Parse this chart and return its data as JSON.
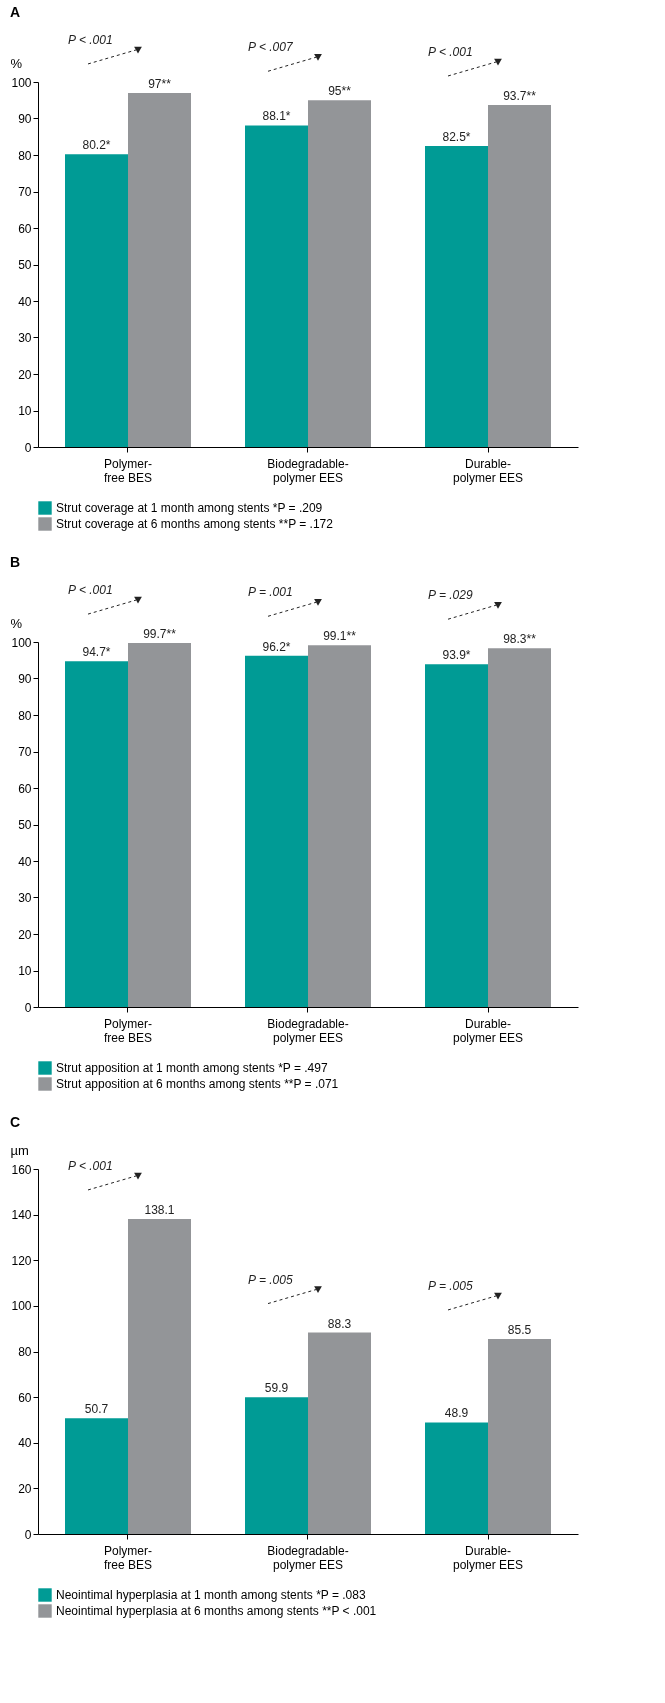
{
  "chart_data": [
    {
      "type": "bar",
      "title": "A",
      "ylabel": "%",
      "categories": [
        "Polymer-free BES",
        "Biodegradable-polymer EES",
        "Durable-polymer EES"
      ],
      "series": [
        {
          "name": "Strut coverage at 1 month among stents *P = .209",
          "color": "#009b95",
          "values": [
            80.2,
            88.1,
            82.5
          ],
          "value_labels": [
            "80.2*",
            "88.1*",
            "82.5*"
          ]
        },
        {
          "name": "Strut coverage at 6 months among stents **P = .172",
          "color": "#939598",
          "values": [
            97,
            95,
            93.7
          ],
          "value_labels": [
            "97**",
            "95**",
            "93.7**"
          ]
        }
      ],
      "ylim": [
        0,
        100
      ],
      "yticks": [
        0,
        10,
        20,
        30,
        40,
        50,
        60,
        70,
        80,
        90,
        100
      ],
      "grid": false,
      "legend": "bottom",
      "annotations": [
        "P < .001",
        "P < .007",
        "P < .001"
      ]
    },
    {
      "type": "bar",
      "title": "B",
      "ylabel": "%",
      "categories": [
        "Polymer-free BES",
        "Biodegradable-polymer EES",
        "Durable-polymer EES"
      ],
      "series": [
        {
          "name": "Strut apposition at 1 month among stents *P = .497",
          "color": "#009b95",
          "values": [
            94.7,
            96.2,
            93.9
          ],
          "value_labels": [
            "94.7*",
            "96.2*",
            "93.9*"
          ]
        },
        {
          "name": "Strut apposition at 6 months among stents **P = .071",
          "color": "#939598",
          "values": [
            99.7,
            99.1,
            98.3
          ],
          "value_labels": [
            "99.7**",
            "99.1**",
            "98.3**"
          ]
        }
      ],
      "ylim": [
        0,
        100
      ],
      "yticks": [
        0,
        10,
        20,
        30,
        40,
        50,
        60,
        70,
        80,
        90,
        100
      ],
      "grid": false,
      "legend": "bottom",
      "annotations": [
        "P < .001",
        "P = .001",
        "P = .029"
      ]
    },
    {
      "type": "bar",
      "title": "C",
      "ylabel": "µm",
      "categories": [
        "Polymer-free BES",
        "Biodegradable-polymer EES",
        "Durable-polymer EES"
      ],
      "series": [
        {
          "name": "Neointimal hyperplasia at 1 month among stents *P = .083",
          "color": "#009b95",
          "values": [
            50.7,
            59.9,
            48.9
          ]
        },
        {
          "name": "Neointimal hyperplasia at 6 months among stents **P < .001",
          "color": "#939598",
          "values": [
            138.1,
            88.3,
            85.5
          ]
        }
      ],
      "data_labels": true,
      "ylim": [
        0,
        160
      ],
      "yticks": [
        0,
        20,
        40,
        60,
        80,
        100,
        120,
        140,
        160
      ],
      "grid": false,
      "legend": "bottom",
      "annotations": [
        "P < .001",
        "P = .005",
        "P = .005"
      ]
    }
  ]
}
